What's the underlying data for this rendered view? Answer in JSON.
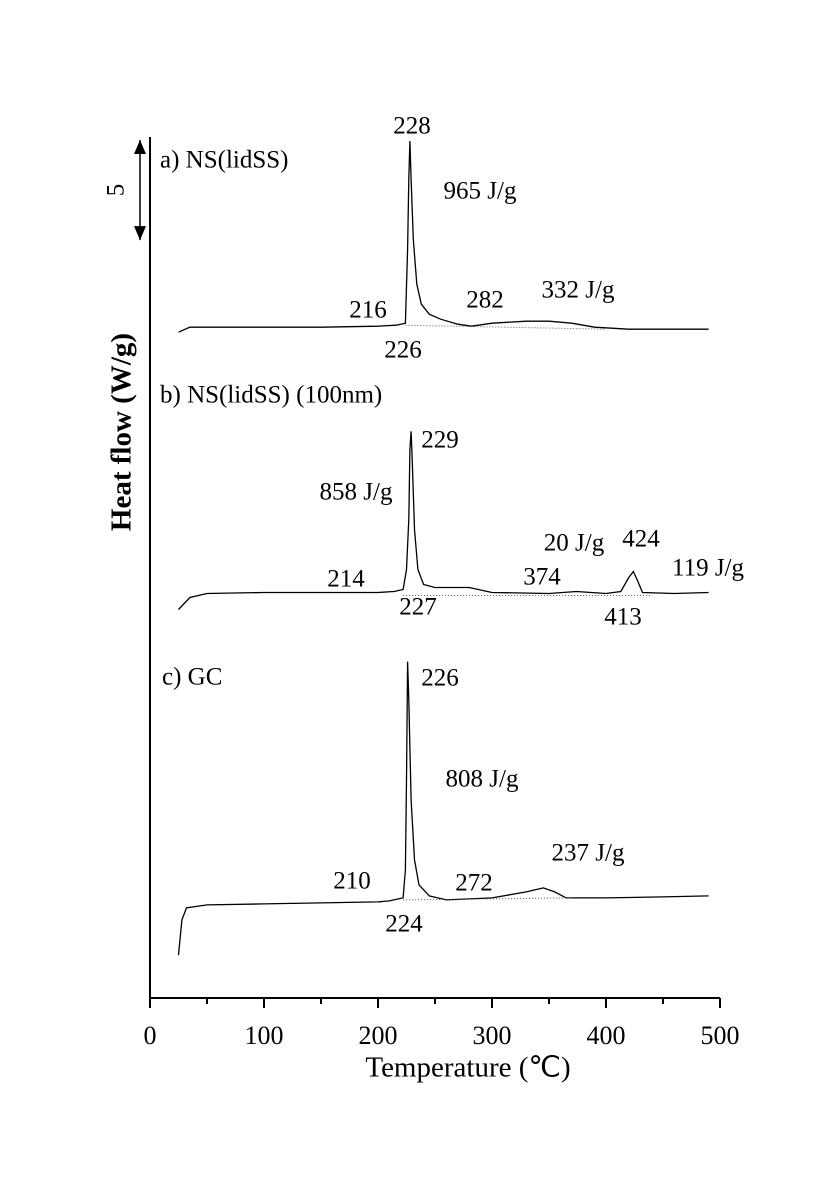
{
  "chart_data": {
    "type": "line",
    "x_label": "Temperature (℃)",
    "y_label": "Heat flow (W/g)",
    "xlim": [
      0,
      500
    ],
    "xticks": [
      0,
      100,
      200,
      300,
      400,
      500
    ],
    "ylim": [
      0,
      43
    ],
    "scale_bar": 5,
    "series": [
      {
        "name": "a) NS(lidSS)",
        "color": "#000000",
        "style": "solid",
        "x": [
          25,
          35,
          50,
          100,
          150,
          200,
          216,
          224,
          226,
          227,
          228,
          229,
          231,
          234,
          238,
          245,
          255,
          270,
          282,
          300,
          330,
          350,
          370,
          390,
          420,
          460,
          490
        ],
        "values": [
          33.25,
          33.5,
          33.5,
          33.5,
          33.5,
          33.55,
          33.6,
          33.7,
          37.4,
          40.9,
          42.8,
          40.9,
          37.9,
          35.65,
          34.65,
          34.15,
          33.9,
          33.65,
          33.55,
          33.7,
          33.8,
          33.8,
          33.7,
          33.5,
          33.4,
          33.4,
          33.4
        ]
      },
      {
        "color": "#555555",
        "style": "dotted",
        "x": [
          224,
          400
        ],
        "values": [
          33.6,
          33.4
        ]
      },
      {
        "name": "b) NS(lidSS) (100nm)",
        "color": "#000000",
        "style": "solid",
        "x": [
          25,
          35,
          50,
          100,
          200,
          214,
          222,
          225,
          227,
          228,
          229,
          230,
          232,
          235,
          240,
          250,
          280,
          300,
          350,
          374,
          400,
          413,
          420,
          424,
          428,
          432,
          460,
          490
        ],
        "values": [
          19.4,
          20.0,
          20.2,
          20.25,
          20.25,
          20.3,
          20.4,
          21.4,
          23.9,
          27.4,
          28.3,
          26.9,
          23.4,
          21.4,
          20.65,
          20.5,
          20.5,
          20.25,
          20.2,
          20.3,
          20.2,
          20.3,
          21.0,
          21.3,
          20.8,
          20.25,
          20.2,
          20.25
        ]
      },
      {
        "color": "#555555",
        "style": "dotted",
        "x": [
          222,
          440
        ],
        "values": [
          20.1,
          20.1
        ]
      },
      {
        "name": "c) GC",
        "color": "#000000",
        "style": "solid",
        "x": [
          25,
          28,
          32,
          50,
          100,
          200,
          210,
          222,
          224,
          225,
          226,
          227,
          229,
          232,
          236,
          245,
          260,
          300,
          330,
          345,
          355,
          365,
          400,
          450,
          490
        ],
        "values": [
          2.15,
          3.9,
          4.5,
          4.65,
          4.7,
          4.8,
          4.85,
          5.0,
          6.4,
          10.9,
          16.8,
          14.9,
          9.9,
          6.9,
          5.65,
          5.1,
          4.9,
          5.0,
          5.3,
          5.5,
          5.3,
          5.0,
          5.0,
          5.05,
          5.1
        ]
      },
      {
        "color": "#555555",
        "style": "dotted",
        "x": [
          222,
          370
        ],
        "values": [
          4.9,
          5.0
        ]
      }
    ],
    "annotations": [
      "228",
      "965 J/g",
      "216",
      "226",
      "282",
      "332 J/g",
      "229",
      "858 J/g",
      "214",
      "227",
      "374",
      "20 J/g",
      "424",
      "413",
      "119 J/g",
      "226",
      "808 J/g",
      "210",
      "224",
      "272",
      "237 J/g"
    ]
  }
}
